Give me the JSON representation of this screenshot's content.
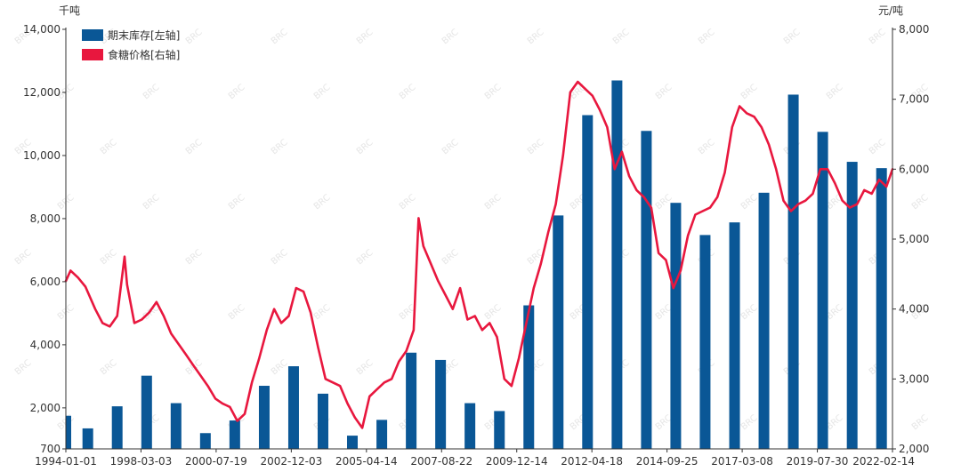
{
  "chart_data": {
    "type": "bar+line",
    "left_axis_unit": "千吨",
    "right_axis_unit": "元/吨",
    "left_ticks": [
      700,
      2000,
      4000,
      6000,
      8000,
      10000,
      12000,
      14000
    ],
    "left_tick_labels": [
      "700",
      "2,000",
      "4,000",
      "6,000",
      "8,000",
      "10,000",
      "12,000",
      "14,000"
    ],
    "left_range": [
      700,
      14000
    ],
    "right_ticks": [
      2000,
      3000,
      4000,
      5000,
      6000,
      7000,
      8000
    ],
    "right_tick_labels": [
      "2,000",
      "3,000",
      "4,000",
      "5,000",
      "6,000",
      "7,000",
      "8,000"
    ],
    "right_range": [
      2000,
      8000
    ],
    "x_range": [
      "1994-01-01",
      "2022-02-14"
    ],
    "x_tick_labels": [
      "1994-01-01",
      "1998-03-03",
      "2000-07-19",
      "2002-12-03",
      "2005-04-14",
      "2007-08-22",
      "2009-12-14",
      "2012-04-18",
      "2014-09-25",
      "2017-03-08",
      "2019-07-30",
      "2022-02-14"
    ],
    "legend": [
      "期末库存[左轴]",
      "食糖价格[右轴]"
    ],
    "legend_position": "top-left",
    "colors": {
      "bar": "#0a5796",
      "line": "#e8173e"
    },
    "bars": {
      "name": "期末库存[左轴]",
      "x": [
        "1994-01-01",
        "1994-10-01",
        "1995-10-01",
        "1996-10-01",
        "1997-10-01",
        "1998-10-01",
        "1999-10-01",
        "2000-10-01",
        "2001-10-01",
        "2002-10-01",
        "2003-10-01",
        "2004-10-01",
        "2005-10-01",
        "2006-10-01",
        "2007-10-01",
        "2008-10-01",
        "2009-10-01",
        "2010-10-01",
        "2011-10-01",
        "2012-10-01",
        "2013-10-01",
        "2014-10-01",
        "2015-10-01",
        "2016-10-01",
        "2017-10-01",
        "2018-10-01",
        "2019-10-01",
        "2020-10-01",
        "2021-10-01"
      ],
      "values": [
        1750,
        1350,
        2050,
        3020,
        2150,
        1200,
        1600,
        2700,
        3320,
        2450,
        1120,
        1620,
        3750,
        3520,
        2150,
        1900,
        5250,
        8100,
        11280,
        12380,
        10780,
        8500,
        7480,
        7880,
        8820,
        11930,
        10750,
        9800,
        9600
      ]
    },
    "line": {
      "name": "食糖价格[右轴]",
      "points": [
        [
          "1994-01-01",
          4400
        ],
        [
          "1994-03-01",
          4550
        ],
        [
          "1994-06-01",
          4450
        ],
        [
          "1994-09-01",
          4320
        ],
        [
          "1995-01-01",
          4000
        ],
        [
          "1995-04-01",
          3800
        ],
        [
          "1995-07-01",
          3750
        ],
        [
          "1995-10-01",
          3900
        ],
        [
          "1996-01-01",
          4750
        ],
        [
          "1996-02-01",
          4350
        ],
        [
          "1996-05-01",
          3800
        ],
        [
          "1996-08-01",
          3850
        ],
        [
          "1996-11-01",
          3950
        ],
        [
          "1997-02-01",
          4100
        ],
        [
          "1997-05-01",
          3900
        ],
        [
          "1997-08-01",
          3650
        ],
        [
          "1997-11-01",
          3500
        ],
        [
          "1998-02-01",
          3350
        ],
        [
          "1998-05-01",
          3200
        ],
        [
          "1998-08-01",
          3050
        ],
        [
          "1998-11-01",
          2900
        ],
        [
          "1999-02-01",
          2720
        ],
        [
          "1999-05-01",
          2650
        ],
        [
          "1999-08-01",
          2600
        ],
        [
          "1999-11-01",
          2400
        ],
        [
          "2000-02-01",
          2500
        ],
        [
          "2000-05-01",
          2950
        ],
        [
          "2000-08-01",
          3300
        ],
        [
          "2000-11-01",
          3700
        ],
        [
          "2001-02-01",
          4000
        ],
        [
          "2001-05-01",
          3800
        ],
        [
          "2001-08-01",
          3900
        ],
        [
          "2001-11-01",
          4300
        ],
        [
          "2002-02-01",
          4250
        ],
        [
          "2002-05-01",
          3950
        ],
        [
          "2002-08-01",
          3450
        ],
        [
          "2002-11-01",
          3000
        ],
        [
          "2003-02-01",
          2950
        ],
        [
          "2003-05-01",
          2900
        ],
        [
          "2003-08-01",
          2650
        ],
        [
          "2003-11-01",
          2450
        ],
        [
          "2004-02-01",
          2300
        ],
        [
          "2004-05-01",
          2750
        ],
        [
          "2004-08-01",
          2850
        ],
        [
          "2004-11-01",
          2950
        ],
        [
          "2005-02-01",
          3000
        ],
        [
          "2005-05-01",
          3250
        ],
        [
          "2005-08-01",
          3400
        ],
        [
          "2005-11-01",
          3700
        ],
        [
          "2006-01-01",
          5300
        ],
        [
          "2006-03-01",
          4900
        ],
        [
          "2006-06-01",
          4650
        ],
        [
          "2006-09-01",
          4400
        ],
        [
          "2006-12-01",
          4200
        ],
        [
          "2007-03-01",
          4000
        ],
        [
          "2007-06-01",
          4300
        ],
        [
          "2007-09-01",
          3850
        ],
        [
          "2007-12-01",
          3900
        ],
        [
          "2008-03-01",
          3700
        ],
        [
          "2008-06-01",
          3800
        ],
        [
          "2008-09-01",
          3600
        ],
        [
          "2008-12-01",
          3000
        ],
        [
          "2009-03-01",
          2900
        ],
        [
          "2009-06-01",
          3300
        ],
        [
          "2009-09-01",
          3800
        ],
        [
          "2009-12-01",
          4300
        ],
        [
          "2010-03-01",
          4650
        ],
        [
          "2010-06-01",
          5100
        ],
        [
          "2010-09-01",
          5500
        ],
        [
          "2010-12-01",
          6200
        ],
        [
          "2011-03-01",
          7100
        ],
        [
          "2011-06-01",
          7250
        ],
        [
          "2011-09-01",
          7150
        ],
        [
          "2011-12-01",
          7050
        ],
        [
          "2012-03-01",
          6850
        ],
        [
          "2012-06-01",
          6600
        ],
        [
          "2012-09-01",
          6000
        ],
        [
          "2012-12-01",
          6250
        ],
        [
          "2013-03-01",
          5900
        ],
        [
          "2013-06-01",
          5700
        ],
        [
          "2013-09-01",
          5600
        ],
        [
          "2013-12-01",
          5450
        ],
        [
          "2014-03-01",
          4800
        ],
        [
          "2014-06-01",
          4700
        ],
        [
          "2014-09-01",
          4300
        ],
        [
          "2014-12-01",
          4550
        ],
        [
          "2015-03-01",
          5050
        ],
        [
          "2015-06-01",
          5350
        ],
        [
          "2015-09-01",
          5400
        ],
        [
          "2015-12-01",
          5450
        ],
        [
          "2016-03-01",
          5600
        ],
        [
          "2016-06-01",
          5950
        ],
        [
          "2016-09-01",
          6600
        ],
        [
          "2016-12-01",
          6900
        ],
        [
          "2017-03-01",
          6800
        ],
        [
          "2017-06-01",
          6750
        ],
        [
          "2017-09-01",
          6600
        ],
        [
          "2017-12-01",
          6350
        ],
        [
          "2018-03-01",
          6000
        ],
        [
          "2018-06-01",
          5550
        ],
        [
          "2018-09-01",
          5400
        ],
        [
          "2018-12-01",
          5500
        ],
        [
          "2019-03-01",
          5550
        ],
        [
          "2019-06-01",
          5650
        ],
        [
          "2019-09-01",
          6000
        ],
        [
          "2019-12-01",
          6000
        ],
        [
          "2020-03-01",
          5800
        ],
        [
          "2020-06-01",
          5550
        ],
        [
          "2020-09-01",
          5450
        ],
        [
          "2020-12-01",
          5500
        ],
        [
          "2021-03-01",
          5700
        ],
        [
          "2021-06-01",
          5650
        ],
        [
          "2021-09-01",
          5850
        ],
        [
          "2021-12-01",
          5750
        ],
        [
          "2022-02-14",
          6000
        ]
      ]
    }
  }
}
